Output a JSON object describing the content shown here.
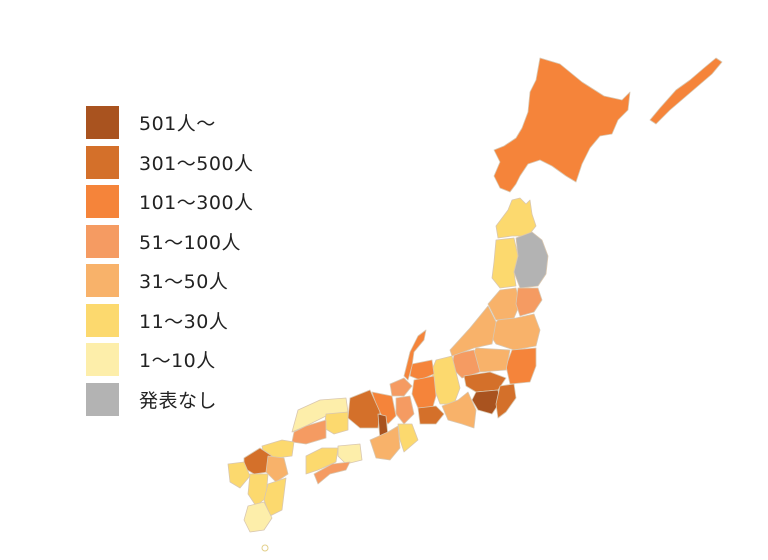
{
  "legend": {
    "items": [
      {
        "label": "501人〜",
        "color": "#a9531f"
      },
      {
        "label": "301〜500人",
        "color": "#d4702a"
      },
      {
        "label": "101〜300人",
        "color": "#f5843a"
      },
      {
        "label": "51〜100人",
        "color": "#f59b62"
      },
      {
        "label": "31〜50人",
        "color": "#f8b26a"
      },
      {
        "label": "11〜30人",
        "color": "#fcd96e"
      },
      {
        "label": "1〜10人",
        "color": "#fdeeaa"
      },
      {
        "label": "発表なし",
        "color": "#b3b3b3"
      }
    ]
  }
}
